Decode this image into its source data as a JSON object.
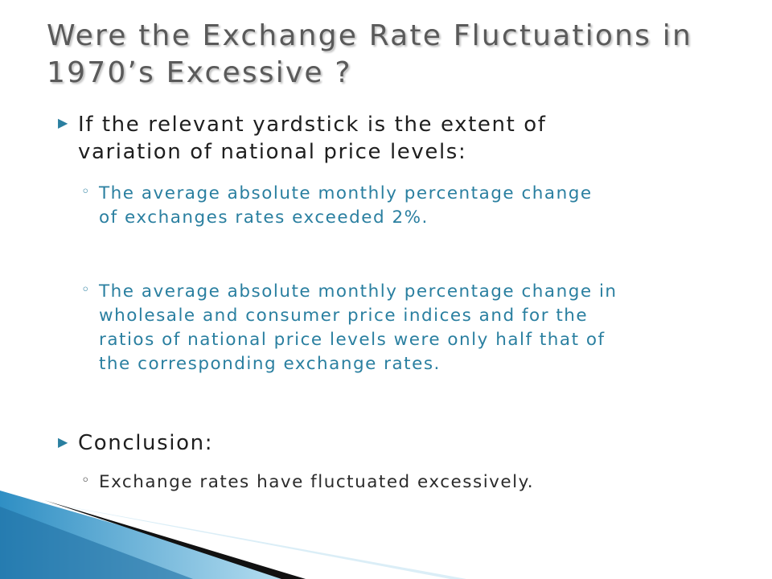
{
  "slide": {
    "title": [
      "Were the Exchange Rate Fluctuations in",
      "1970’s Excessive ?"
    ],
    "bullets": [
      {
        "text": [
          "If the relevant yardstick is the extent of",
          "variation of national price levels:"
        ],
        "subitems": [
          [
            "The average absolute monthly percentage change",
            "of exchanges rates exceeded 2%."
          ],
          [
            "The average absolute monthly percentage change in",
            "wholesale and consumer price indices and for the",
            "ratios of national price levels were only half that of",
            "the corresponding exchange rates."
          ]
        ]
      },
      {
        "text": [
          "Conclusion:"
        ],
        "subitems": [
          [
            "Exchange rates have fluctuated excessively."
          ]
        ]
      }
    ]
  }
}
